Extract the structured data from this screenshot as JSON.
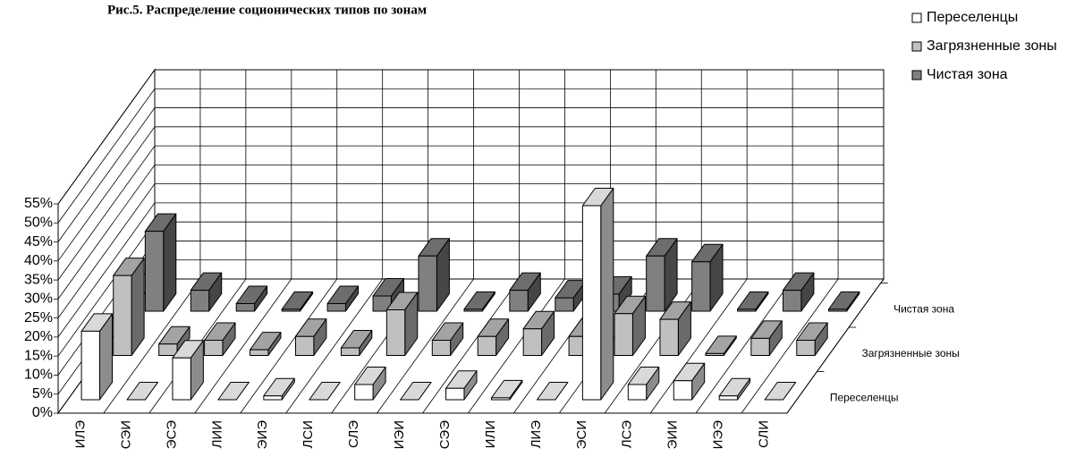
{
  "chart_data": {
    "type": "bar3d",
    "title": "Рис.5. Распределение соционических типов по зонам",
    "categories": [
      "ИЛЭ",
      "СЭИ",
      "ЭСЭ",
      "ЛИИ",
      "ЭИЭ",
      "ЛСИ",
      "СЛЭ",
      "ИЭИ",
      "СЭЭ",
      "ИЛИ",
      "ЛИЭ",
      "ЭСИ",
      "ЛСЭ",
      "ЭИИ",
      "ИЭЭ",
      "СЛИ"
    ],
    "series": [
      {
        "name": "Переселенцы",
        "color": "#ffffff",
        "values": [
          18,
          0,
          11,
          0,
          1,
          0,
          4,
          0,
          3,
          0.5,
          0,
          51,
          4,
          5,
          1,
          0
        ]
      },
      {
        "name": "Загрязненные зоны",
        "color": "#c0c0c0",
        "values": [
          21,
          3,
          4,
          1.5,
          5,
          2,
          12,
          4,
          5,
          7,
          5,
          11,
          9.5,
          0.5,
          4.5,
          4
        ]
      },
      {
        "name": "Чистая зона",
        "color": "#808080",
        "values": [
          21,
          5.5,
          2,
          0.5,
          2,
          4,
          14.5,
          0.5,
          5.5,
          3.5,
          4.5,
          14.5,
          13,
          0.5,
          5.5,
          0.5
        ]
      }
    ],
    "ylim": [
      0,
      55
    ],
    "yticks": [
      {
        "value": 0,
        "label": "0%"
      },
      {
        "value": 5,
        "label": "5%"
      },
      {
        "value": 10,
        "label": "10%"
      },
      {
        "value": 15,
        "label": "15%"
      },
      {
        "value": 20,
        "label": "20%"
      },
      {
        "value": 25,
        "label": "25%"
      },
      {
        "value": 30,
        "label": "30%"
      },
      {
        "value": 35,
        "label": "35%"
      },
      {
        "value": 40,
        "label": "40%"
      },
      {
        "value": 45,
        "label": "45%"
      },
      {
        "value": 50,
        "label": "50%"
      },
      {
        "value": 55,
        "label": "55%"
      }
    ],
    "grid": true,
    "legend": "top-right"
  }
}
